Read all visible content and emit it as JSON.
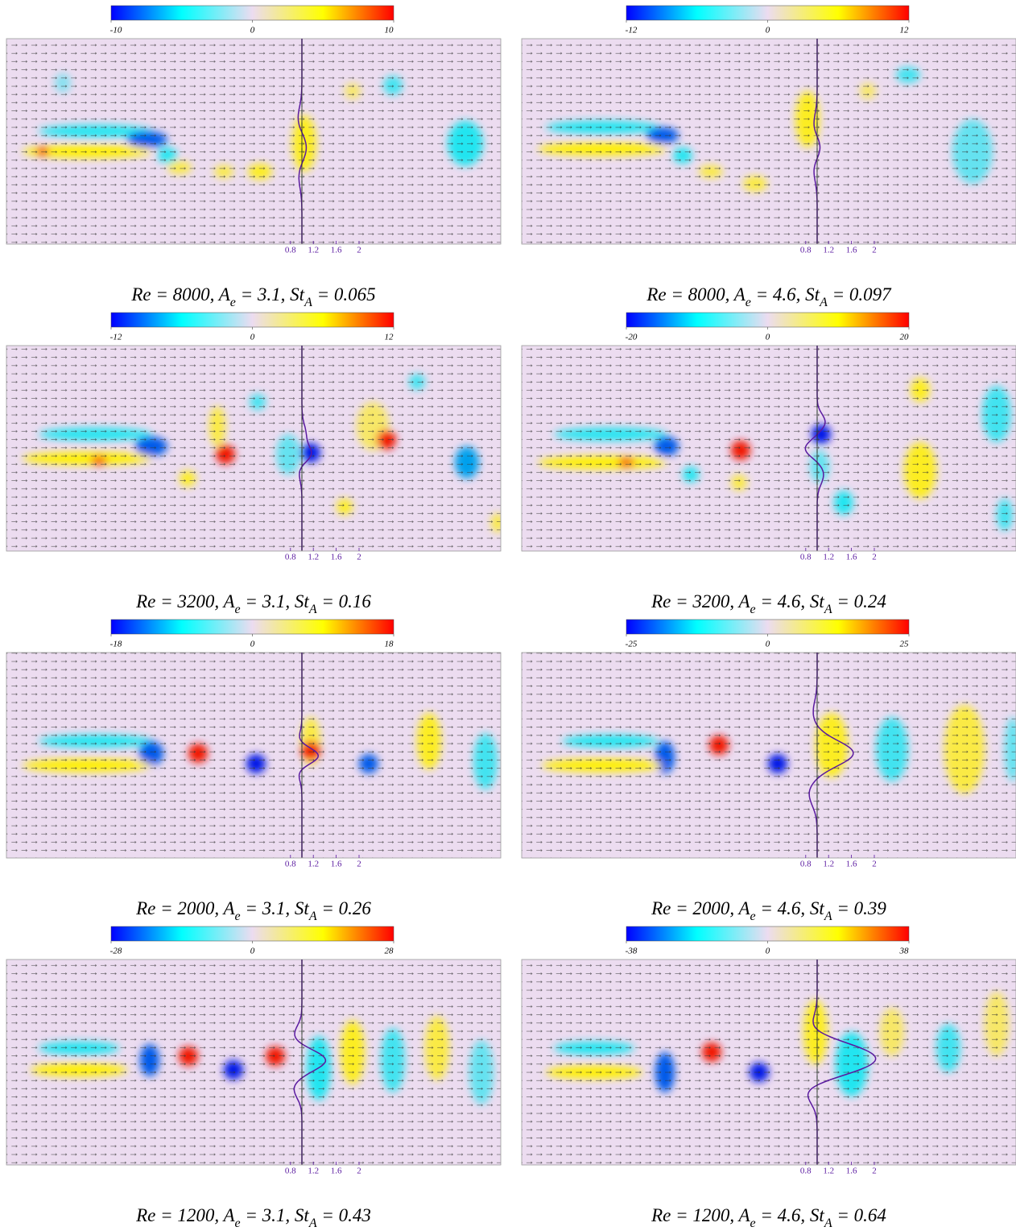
{
  "profile_ticks": [
    0.8,
    1.2,
    1.6,
    2
  ],
  "panels": [
    {
      "colorbar": {
        "min": -10,
        "mid": 0,
        "max": 10
      },
      "caption": [
        "Re = 8000, A",
        "e",
        " = 3.1, St",
        "A",
        " = 0.065"
      ]
    },
    {
      "colorbar": {
        "min": -12,
        "mid": 0,
        "max": 12
      },
      "caption": [
        "Re = 8000, A",
        "e",
        " = 4.6, St",
        "A",
        " = 0.097"
      ]
    },
    {
      "colorbar": {
        "min": -12,
        "mid": 0,
        "max": 12
      },
      "caption": [
        "Re = 3200, A",
        "e",
        " = 3.1, St",
        "A",
        " = 0.16"
      ]
    },
    {
      "colorbar": {
        "min": -20,
        "mid": 0,
        "max": 20
      },
      "caption": [
        "Re = 3200, A",
        "e",
        " = 4.6, St",
        "A",
        " = 0.24"
      ]
    },
    {
      "colorbar": {
        "min": -18,
        "mid": 0,
        "max": 18
      },
      "caption": [
        "Re = 2000, A",
        "e",
        " = 3.1, St",
        "A",
        " = 0.26"
      ]
    },
    {
      "colorbar": {
        "min": -25,
        "mid": 0,
        "max": 25
      },
      "caption": [
        "Re = 2000, A",
        "e",
        " = 4.6, St",
        "A",
        " = 0.39"
      ]
    },
    {
      "colorbar": {
        "min": -28,
        "mid": 0,
        "max": 28
      },
      "caption": [
        "Re = 1200, A",
        "e",
        " = 3.1, St",
        "A",
        " = 0.43"
      ]
    },
    {
      "colorbar": {
        "min": -38,
        "mid": 0,
        "max": 38
      },
      "caption": [
        "Re = 1200, A",
        "e",
        " = 4.6, St",
        "A",
        " = 0.64"
      ]
    }
  ]
}
